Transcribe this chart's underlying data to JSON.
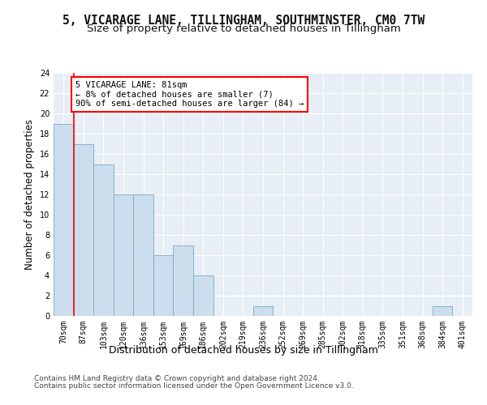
{
  "title": "5, VICARAGE LANE, TILLINGHAM, SOUTHMINSTER, CM0 7TW",
  "subtitle": "Size of property relative to detached houses in Tillingham",
  "xlabel": "Distribution of detached houses by size in Tillingham",
  "ylabel": "Number of detached properties",
  "footer1": "Contains HM Land Registry data © Crown copyright and database right 2024.",
  "footer2": "Contains public sector information licensed under the Open Government Licence v3.0.",
  "categories": [
    "70sqm",
    "87sqm",
    "103sqm",
    "120sqm",
    "136sqm",
    "153sqm",
    "169sqm",
    "186sqm",
    "202sqm",
    "219sqm",
    "236sqm",
    "252sqm",
    "269sqm",
    "285sqm",
    "302sqm",
    "318sqm",
    "335sqm",
    "351sqm",
    "368sqm",
    "384sqm",
    "401sqm"
  ],
  "values": [
    19,
    17,
    15,
    12,
    12,
    6,
    7,
    4,
    0,
    0,
    1,
    0,
    0,
    0,
    0,
    0,
    0,
    0,
    0,
    1,
    0
  ],
  "bar_color": "#ccdded",
  "bar_edge_color": "#7aaac8",
  "ann_line1": "5 VICARAGE LANE: 81sqm",
  "ann_line2": "← 8% of detached houses are smaller (7)",
  "ann_line3": "90% of semi-detached houses are larger (84) →",
  "red_line_x": 0.5,
  "ylim": [
    0,
    24
  ],
  "yticks": [
    0,
    2,
    4,
    6,
    8,
    10,
    12,
    14,
    16,
    18,
    20,
    22,
    24
  ],
  "background_color": "#e8eef5",
  "grid_color": "#ffffff",
  "title_fontsize": 10.5,
  "subtitle_fontsize": 9.5,
  "axis_label_fontsize": 8.5,
  "tick_fontsize": 7,
  "footer_fontsize": 6.5,
  "ann_fontsize": 7.5
}
